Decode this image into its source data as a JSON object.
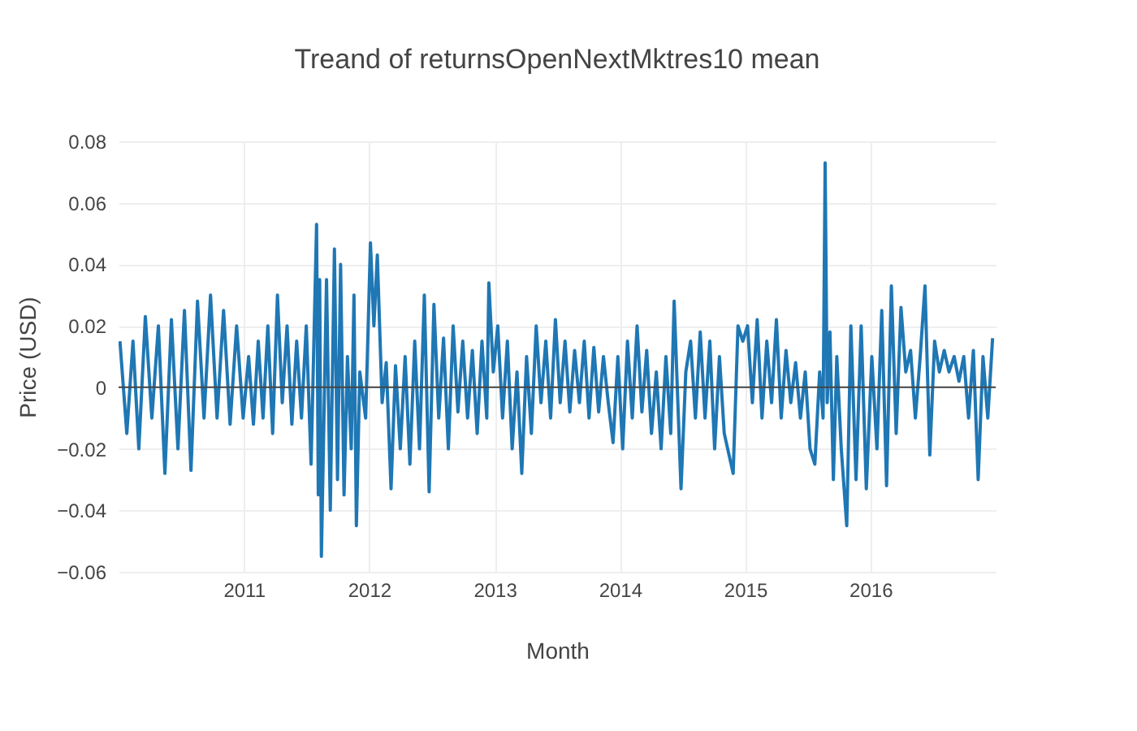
{
  "chart_data": {
    "type": "line",
    "title": "Treand of returnsOpenNextMktres10 mean",
    "xlabel": "Month",
    "ylabel": "Price (USD)",
    "xlim": [
      "2010-01-01",
      "2016-12-31"
    ],
    "xticks": [
      "2011",
      "2012",
      "2013",
      "2014",
      "2015",
      "2016"
    ],
    "ylim": [
      -0.06,
      0.08
    ],
    "yticks": [
      {
        "value": -0.06,
        "label": "−0.06"
      },
      {
        "value": -0.04,
        "label": "−0.04"
      },
      {
        "value": -0.02,
        "label": "−0.02"
      },
      0,
      0.02,
      0.04,
      0.06,
      0.08
    ],
    "grid": true,
    "line_style": "solid",
    "marker": "none",
    "ref_lines": [
      {
        "axis": "y",
        "value": 0,
        "color": "#444444"
      }
    ],
    "series": [
      {
        "color": "#1f77b4",
        "x": [
          "2010-01-05",
          "2010-01-25",
          "2010-02-12",
          "2010-03-01",
          "2010-03-20",
          "2010-04-08",
          "2010-04-27",
          "2010-05-16",
          "2010-06-04",
          "2010-06-23",
          "2010-07-12",
          "2010-07-31",
          "2010-08-19",
          "2010-09-07",
          "2010-09-26",
          "2010-10-15",
          "2010-11-03",
          "2010-11-22",
          "2010-12-11",
          "2010-12-30",
          "2011-01-15",
          "2011-01-29",
          "2011-02-12",
          "2011-02-26",
          "2011-03-12",
          "2011-03-26",
          "2011-04-09",
          "2011-04-23",
          "2011-05-07",
          "2011-05-21",
          "2011-06-04",
          "2011-06-18",
          "2011-07-02",
          "2011-07-16",
          "2011-08-01",
          "2011-08-06",
          "2011-08-10",
          "2011-08-15",
          "2011-08-30",
          "2011-09-10",
          "2011-09-22",
          "2011-10-01",
          "2011-10-10",
          "2011-10-20",
          "2011-10-30",
          "2011-11-10",
          "2011-11-18",
          "2011-11-25",
          "2011-12-05",
          "2011-12-22",
          "2012-01-05",
          "2012-01-15",
          "2012-01-25",
          "2012-02-08",
          "2012-02-20",
          "2012-03-05",
          "2012-03-18",
          "2012-04-01",
          "2012-04-15",
          "2012-04-29",
          "2012-05-13",
          "2012-05-27",
          "2012-06-10",
          "2012-06-24",
          "2012-07-08",
          "2012-07-22",
          "2012-08-05",
          "2012-08-19",
          "2012-09-02",
          "2012-09-16",
          "2012-09-30",
          "2012-10-14",
          "2012-10-28",
          "2012-11-11",
          "2012-11-25",
          "2012-12-09",
          "2012-12-15",
          "2012-12-28",
          "2013-01-10",
          "2013-01-24",
          "2013-02-07",
          "2013-02-21",
          "2013-03-07",
          "2013-03-21",
          "2013-04-04",
          "2013-04-18",
          "2013-05-02",
          "2013-05-16",
          "2013-05-30",
          "2013-06-13",
          "2013-06-27",
          "2013-07-11",
          "2013-07-25",
          "2013-08-08",
          "2013-08-22",
          "2013-09-05",
          "2013-09-19",
          "2013-10-03",
          "2013-10-17",
          "2013-10-31",
          "2013-11-14",
          "2013-11-28",
          "2013-12-12",
          "2013-12-26",
          "2014-01-09",
          "2014-01-23",
          "2014-02-06",
          "2014-02-20",
          "2014-03-06",
          "2014-03-20",
          "2014-04-03",
          "2014-04-17",
          "2014-05-01",
          "2014-05-15",
          "2014-05-29",
          "2014-06-08",
          "2014-06-28",
          "2014-07-12",
          "2014-07-26",
          "2014-08-09",
          "2014-08-23",
          "2014-09-06",
          "2014-09-20",
          "2014-10-04",
          "2014-10-18",
          "2014-11-01",
          "2014-11-27",
          "2014-12-11",
          "2014-12-25",
          "2015-01-08",
          "2015-01-22",
          "2015-02-05",
          "2015-02-19",
          "2015-03-05",
          "2015-03-19",
          "2015-04-02",
          "2015-04-16",
          "2015-04-30",
          "2015-05-14",
          "2015-05-28",
          "2015-06-11",
          "2015-06-25",
          "2015-07-09",
          "2015-07-23",
          "2015-08-06",
          "2015-08-16",
          "2015-08-22",
          "2015-08-28",
          "2015-09-05",
          "2015-09-15",
          "2015-09-25",
          "2015-10-08",
          "2015-10-24",
          "2015-11-05",
          "2015-11-20",
          "2015-12-05",
          "2015-12-20",
          "2016-01-05",
          "2016-01-20",
          "2016-02-03",
          "2016-02-17",
          "2016-03-02",
          "2016-03-16",
          "2016-03-30",
          "2016-04-13",
          "2016-04-27",
          "2016-05-11",
          "2016-05-25",
          "2016-06-08",
          "2016-06-22",
          "2016-07-06",
          "2016-07-20",
          "2016-08-03",
          "2016-08-17",
          "2016-09-01",
          "2016-09-15",
          "2016-09-29",
          "2016-10-13",
          "2016-10-27",
          "2016-11-10",
          "2016-11-24",
          "2016-12-08",
          "2016-12-22"
        ],
        "values": [
          0.015,
          -0.015,
          0.015,
          -0.02,
          0.023,
          -0.01,
          0.02,
          -0.028,
          0.022,
          -0.02,
          0.025,
          -0.027,
          0.028,
          -0.01,
          0.03,
          -0.01,
          0.025,
          -0.012,
          0.02,
          -0.01,
          0.01,
          -0.012,
          0.015,
          -0.01,
          0.02,
          -0.015,
          0.03,
          -0.005,
          0.02,
          -0.012,
          0.015,
          -0.01,
          0.02,
          -0.025,
          0.053,
          -0.035,
          0.035,
          -0.055,
          0.035,
          -0.04,
          0.045,
          -0.03,
          0.04,
          -0.035,
          0.01,
          -0.02,
          0.03,
          -0.045,
          0.005,
          -0.01,
          0.047,
          0.02,
          0.043,
          -0.005,
          0.008,
          -0.033,
          0.007,
          -0.02,
          0.01,
          -0.025,
          0.015,
          -0.02,
          0.03,
          -0.034,
          0.027,
          -0.01,
          0.016,
          -0.02,
          0.02,
          -0.008,
          0.015,
          -0.01,
          0.012,
          -0.015,
          0.015,
          -0.01,
          0.034,
          0.005,
          0.02,
          -0.01,
          0.015,
          -0.02,
          0.005,
          -0.028,
          0.01,
          -0.015,
          0.02,
          -0.005,
          0.015,
          -0.01,
          0.022,
          -0.005,
          0.015,
          -0.008,
          0.012,
          -0.005,
          0.015,
          -0.01,
          0.013,
          -0.008,
          0.01,
          -0.005,
          -0.018,
          0.01,
          -0.02,
          0.015,
          -0.01,
          0.02,
          -0.008,
          0.012,
          -0.015,
          0.005,
          -0.02,
          0.01,
          -0.015,
          0.028,
          -0.033,
          0.005,
          0.015,
          -0.01,
          0.018,
          -0.01,
          0.015,
          -0.02,
          0.01,
          -0.015,
          -0.028,
          0.02,
          0.015,
          0.02,
          -0.005,
          0.022,
          -0.01,
          0.015,
          -0.005,
          0.022,
          -0.01,
          0.012,
          -0.005,
          0.008,
          -0.01,
          0.005,
          -0.02,
          -0.025,
          0.005,
          -0.01,
          0.073,
          -0.005,
          0.018,
          -0.03,
          0.01,
          -0.02,
          -0.045,
          0.02,
          -0.03,
          0.02,
          -0.033,
          0.01,
          -0.02,
          0.025,
          -0.032,
          0.033,
          -0.015,
          0.026,
          0.005,
          0.012,
          -0.01,
          0.01,
          0.033,
          -0.022,
          0.015,
          0.005,
          0.012,
          0.005,
          0.01,
          0.002,
          0.01,
          -0.01,
          0.012,
          -0.03,
          0.01,
          -0.01,
          0.016
        ]
      }
    ]
  }
}
